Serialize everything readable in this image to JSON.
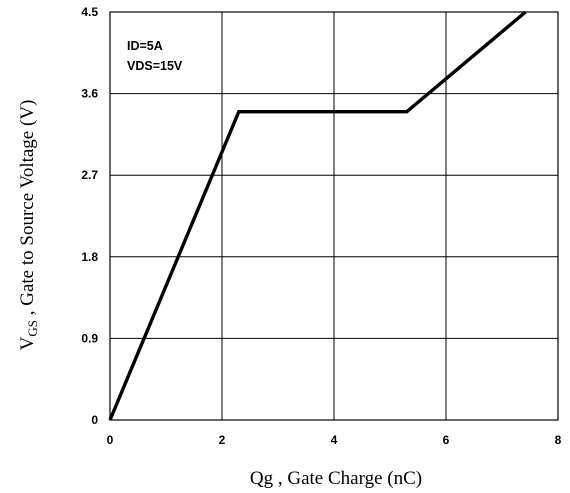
{
  "chart_data": {
    "type": "line",
    "title": "",
    "xlabel": "Qg , Gate Charge (nC)",
    "ylabel_main": "V",
    "ylabel_sub": "GS",
    "ylabel_rest": " , Gate to Source Voltage (V)",
    "xlim": [
      0,
      8
    ],
    "ylim": [
      0,
      4.5
    ],
    "x_ticks": [
      0,
      2,
      4,
      6,
      8
    ],
    "x_tick_labels": [
      "0",
      "2",
      "4",
      "6",
      "8"
    ],
    "y_ticks": [
      0,
      0.9,
      1.8,
      2.7,
      3.6,
      4.5
    ],
    "y_tick_labels": [
      "0",
      "0.9",
      "1.8",
      "2.7",
      "3.6",
      "4.5"
    ],
    "grid": true,
    "annotations": [
      "ID=5A",
      "VDS=15V"
    ],
    "series": [
      {
        "color": "#000000",
        "x": [
          0,
          2.3,
          5.3,
          7.42
        ],
        "y": [
          0,
          3.4,
          3.4,
          4.5
        ]
      }
    ]
  }
}
